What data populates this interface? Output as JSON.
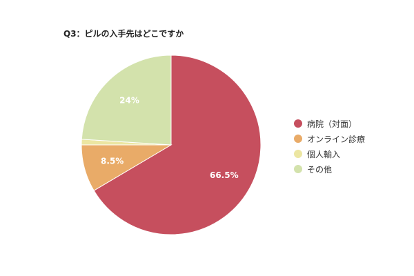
{
  "chart_data": {
    "type": "pie",
    "title": "Q3：ピルの入手先はどこですか",
    "categories": [
      "病院（対面）",
      "オンライン診療",
      "個人輸入",
      "その他"
    ],
    "values": [
      66.5,
      8.5,
      1,
      24
    ],
    "data_labels": [
      "66.5%",
      "8.5%",
      "",
      "24%"
    ],
    "colors": [
      "#c64f5e",
      "#e9ab68",
      "#ece6a2",
      "#d3e2ac"
    ],
    "label_color": "#ffffff",
    "start_angle_deg": 0,
    "direction": "clockwise",
    "legend_position": "right"
  }
}
